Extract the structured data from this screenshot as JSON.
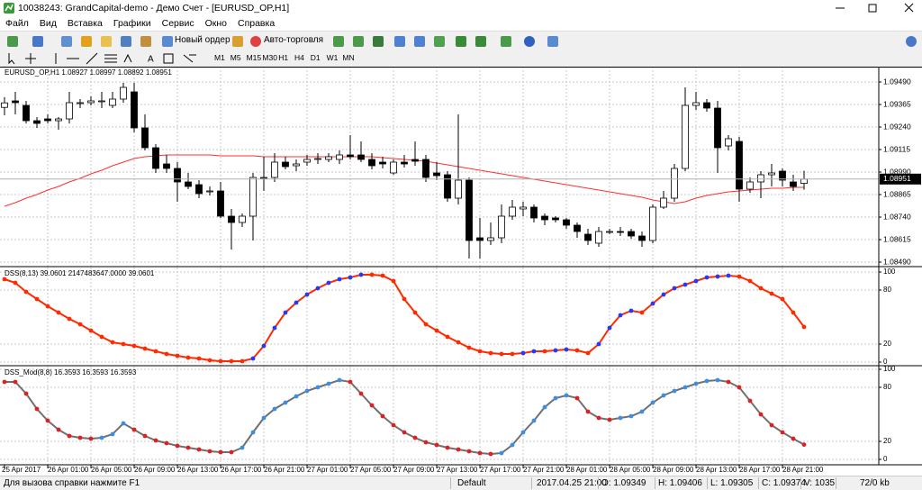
{
  "window": {
    "title": "10038243: GrandCapital-demo - Демо Счет - [EURUSD_OP,H1]",
    "menu": [
      "Файл",
      "Вид",
      "Вставка",
      "Графики",
      "Сервис",
      "Окно",
      "Справка"
    ],
    "toolbar": {
      "new_order": "Новый ордер",
      "auto_trading": "Авто-торговля",
      "timeframes": [
        "M1",
        "M5",
        "M15",
        "M30",
        "H1",
        "H4",
        "D1",
        "W1",
        "MN"
      ]
    }
  },
  "chart_data": [
    {
      "type": "candlestick",
      "label": "EURUSD_OP,H1  1.08927 1.08997 1.08892 1.08951",
      "open": [
        1.09349,
        1.09385,
        1.0936,
        1.09275,
        1.09285,
        1.09275,
        1.09285,
        1.09375,
        1.09375,
        1.09385,
        1.0936,
        1.09395,
        1.09435,
        1.09235,
        1.09125,
        1.09035,
        1.0901,
        1.08935,
        1.0892,
        1.08885,
        1.08885,
        1.08745,
        1.0871,
        1.08745,
        1.0896,
        1.0896,
        1.09045,
        1.09025,
        1.09045,
        1.0906,
        1.0906,
        1.0906,
        1.09085,
        1.09085,
        1.0906,
        1.09045,
        1.08985,
        1.09045,
        1.0906,
        1.0906,
        1.08985,
        1.08975,
        1.08845,
        1.08945,
        1.08625,
        1.0861,
        1.08625,
        1.08745,
        1.08785,
        1.08795,
        1.08745,
        1.08735,
        1.08725,
        1.08695,
        1.08645,
        1.08595,
        1.0866,
        1.0866,
        1.0866,
        1.08635,
        1.0861,
        1.08795,
        1.08845,
        1.0901,
        1.0936,
        1.09375,
        1.09345,
        1.09135,
        1.0916,
        1.08895,
        1.08935,
        1.08975,
        1.08995,
        1.08935,
        1.08927
      ],
      "high": [
        1.09406,
        1.09435,
        1.09385,
        1.09295,
        1.0931,
        1.09295,
        1.09435,
        1.09395,
        1.0941,
        1.09435,
        1.09435,
        1.09485,
        1.09485,
        1.0931,
        1.09145,
        1.09085,
        1.09045,
        1.08985,
        1.08945,
        1.0891,
        1.08935,
        1.08785,
        1.0876,
        1.08985,
        1.09075,
        1.09095,
        1.09075,
        1.0906,
        1.09085,
        1.09095,
        1.09095,
        1.0911,
        1.09195,
        1.0916,
        1.09095,
        1.09075,
        1.0906,
        1.09085,
        1.0916,
        1.09085,
        1.09045,
        1.08995,
        1.0931,
        1.0896,
        1.08735,
        1.0871,
        1.0881,
        1.08835,
        1.08825,
        1.0881,
        1.0876,
        1.08745,
        1.08735,
        1.0871,
        1.08675,
        1.08685,
        1.08675,
        1.08685,
        1.08675,
        1.0866,
        1.0881,
        1.08885,
        1.09035,
        1.0946,
        1.09435,
        1.09395,
        1.09385,
        1.09195,
        1.09185,
        1.0896,
        1.08995,
        1.09035,
        1.0901,
        1.08975,
        1.08997
      ],
      "low": [
        1.09305,
        1.0931,
        1.0926,
        1.09235,
        1.0926,
        1.09225,
        1.0926,
        1.09345,
        1.0936,
        1.09345,
        1.09345,
        1.09375,
        1.0921,
        1.0911,
        1.08985,
        1.08985,
        1.08825,
        1.08895,
        1.08845,
        1.0886,
        1.08735,
        1.0856,
        1.08685,
        1.0861,
        1.08885,
        1.08935,
        1.09005,
        1.08995,
        1.09025,
        1.09035,
        1.09045,
        1.09035,
        1.0906,
        1.09045,
        1.09005,
        1.0901,
        1.08975,
        1.09015,
        1.09025,
        1.08935,
        1.08945,
        1.08825,
        1.0881,
        1.0851,
        1.0851,
        1.08585,
        1.08595,
        1.08725,
        1.08745,
        1.0871,
        1.08695,
        1.0871,
        1.08675,
        1.08625,
        1.08585,
        1.08575,
        1.08645,
        1.08635,
        1.0862,
        1.08575,
        1.08595,
        1.08785,
        1.08825,
        1.08995,
        1.09335,
        1.09325,
        1.08985,
        1.0911,
        1.08825,
        1.08875,
        1.08845,
        1.0891,
        1.0891,
        1.08885,
        1.08892
      ],
      "close": [
        1.09374,
        1.09375,
        1.09275,
        1.0926,
        1.09275,
        1.09285,
        1.09375,
        1.09375,
        1.09385,
        1.09385,
        1.09395,
        1.0946,
        1.09235,
        1.09125,
        1.0901,
        1.0901,
        1.08935,
        1.0891,
        1.0887,
        1.08885,
        1.08745,
        1.0871,
        1.08745,
        1.0896,
        1.0896,
        1.09045,
        1.0902,
        1.09035,
        1.0906,
        1.09065,
        1.09075,
        1.09085,
        1.09075,
        1.0906,
        1.09025,
        1.09035,
        1.09045,
        1.09035,
        1.0905,
        1.0896,
        1.0897,
        1.08845,
        1.08945,
        1.0861,
        1.0861,
        1.08625,
        1.08745,
        1.08795,
        1.08795,
        1.08735,
        1.08725,
        1.08725,
        1.08695,
        1.0866,
        1.0861,
        1.0866,
        1.0866,
        1.08655,
        1.08635,
        1.0861,
        1.08795,
        1.08845,
        1.0901,
        1.0936,
        1.09375,
        1.09345,
        1.09125,
        1.09175,
        1.08895,
        1.08935,
        1.08975,
        1.08985,
        1.08945,
        1.0891,
        1.08951
      ],
      "ma": {
        "color": "#ff3030",
        "values": [
          1.088,
          1.0882,
          1.08845,
          1.08865,
          1.0889,
          1.0891,
          1.08935,
          1.08955,
          1.0898,
          1.09,
          1.09025,
          1.09045,
          1.09065,
          1.09075,
          1.0908,
          1.09085,
          1.09085,
          1.09085,
          1.09085,
          1.09085,
          1.0908,
          1.0908,
          1.0908,
          1.0908,
          1.09075,
          1.09075,
          1.09075,
          1.09075,
          1.09075,
          1.09075,
          1.09075,
          1.09075,
          1.09075,
          1.09075,
          1.09075,
          1.0907,
          1.09065,
          1.0906,
          1.09055,
          1.0905,
          1.0904,
          1.0903,
          1.0902,
          1.0901,
          1.09,
          1.0899,
          1.0898,
          1.0897,
          1.0896,
          1.0895,
          1.0894,
          1.0893,
          1.0892,
          1.0891,
          1.089,
          1.0889,
          1.0888,
          1.0887,
          1.0886,
          1.0885,
          1.08835,
          1.08825,
          1.08815,
          1.08825,
          1.08845,
          1.0886,
          1.0887,
          1.0888,
          1.08885,
          1.0889,
          1.08895,
          1.089,
          1.089,
          1.08905,
          1.08905
        ]
      },
      "bull_color": "#ffffff",
      "bear_color": "#000000",
      "outline_color": "#000000",
      "ylim": [
        1.0848,
        1.0956
      ],
      "yticks": [
        {
          "value": 1.0949,
          "label": "1.09490"
        },
        {
          "value": 1.09365,
          "label": "1.09365"
        },
        {
          "value": 1.0924,
          "label": "1.09240"
        },
        {
          "value": 1.09115,
          "label": "1.09115"
        },
        {
          "value": 1.0899,
          "label": "1.08990"
        },
        {
          "value": 1.08865,
          "label": "1.08865"
        },
        {
          "value": 1.0874,
          "label": "1.08740"
        },
        {
          "value": 1.08615,
          "label": "1.08615"
        },
        {
          "value": 1.0849,
          "label": "1.08490"
        }
      ],
      "grid": true,
      "time_labels": [
        "25 Apr 2017",
        "26 Apr 01:00",
        "26 Apr 05:00",
        "26 Apr 09:00",
        "26 Apr 13:00",
        "26 Apr 17:00",
        "26 Apr 21:00",
        "27 Apr 01:00",
        "27 Apr 05:00",
        "27 Apr 09:00",
        "27 Apr 13:00",
        "27 Apr 17:00",
        "27 Apr 21:00",
        "28 Apr 01:00",
        "28 Apr 05:00",
        "28 Apr 09:00",
        "28 Apr 13:00",
        "28 Apr 17:00",
        "28 Apr 21:00"
      ]
    },
    {
      "type": "dots",
      "label": "DSS(8,13) 39.0601 2147483647.0000 39.0601",
      "values": [
        92,
        88,
        78,
        70,
        62,
        55,
        48,
        42,
        35,
        28,
        22,
        20,
        18,
        15,
        12,
        9,
        7,
        5,
        4,
        2,
        1,
        1,
        1,
        4,
        18,
        38,
        55,
        66,
        75,
        82,
        88,
        92,
        94,
        97,
        97,
        96,
        90,
        70,
        55,
        42,
        35,
        28,
        22,
        16,
        12,
        10,
        9,
        9,
        10,
        12,
        12,
        13,
        14,
        13,
        10,
        20,
        38,
        52,
        57,
        55,
        65,
        75,
        82,
        86,
        90,
        94,
        95,
        96,
        95,
        90,
        82,
        76,
        70,
        55,
        39.0601
      ],
      "line_color": "#ff2a00",
      "up_color": "#1e3cff",
      "down_color": "#ff2a00",
      "ylim": [
        0,
        100
      ],
      "yticks": [
        100,
        80,
        20,
        0
      ],
      "grid": true
    },
    {
      "type": "dots",
      "label": "DSS_Mod(8,8) 16.3593 16.3593 16.3593",
      "values": [
        86,
        86,
        73,
        56,
        43,
        33,
        26,
        24,
        23,
        24,
        28,
        40,
        33,
        26,
        21,
        18,
        15,
        13,
        11,
        9,
        8,
        8,
        13,
        30,
        46,
        56,
        63,
        70,
        76,
        80,
        84,
        88,
        86,
        73,
        60,
        48,
        38,
        30,
        24,
        19,
        16,
        13,
        11,
        9,
        7,
        6,
        7,
        16,
        30,
        43,
        58,
        68,
        71,
        68,
        53,
        46,
        44,
        46,
        48,
        53,
        63,
        71,
        76,
        80,
        84,
        87,
        88,
        86,
        80,
        65,
        50,
        38,
        30,
        23,
        16.3593
      ],
      "line_color": "#707070",
      "up_color": "#3a8ee6",
      "down_color": "#e02020",
      "ylim": [
        0,
        100
      ],
      "yticks": [
        100,
        80,
        20,
        0
      ],
      "grid": true
    }
  ],
  "status_bar": [
    "Для вызова справки нажмите F1",
    "Default",
    "2017.04.25 21:00",
    "O: 1.09349",
    "H: 1.09406",
    "L: 1.09305",
    "C: 1.09374",
    "V: 1035",
    "72/0 kb"
  ]
}
